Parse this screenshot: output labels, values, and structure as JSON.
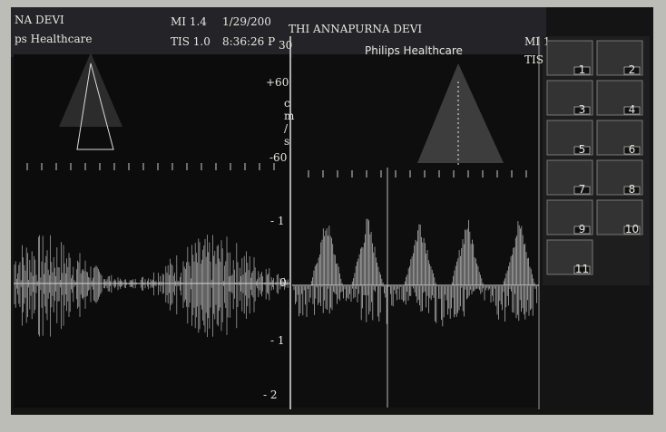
{
  "left_header": {
    "name": "NA DEVI",
    "org": "ps Healthcare",
    "mi": "MI 1.4",
    "tis": "TIS 1.0",
    "date": "1/29/200",
    "time": "8:36:26 P"
  },
  "right_header": {
    "name": "THI ANNAPURNA DEVI",
    "frame": "30",
    "org": "Philips Healthcare",
    "mi": "MI 1",
    "tis": "TIS"
  },
  "scale": {
    "top": "+60",
    "unit": [
      "c",
      "m",
      "/",
      "s"
    ],
    "bottom": "-60",
    "ticks": [
      "- 1",
      "0",
      "- 1",
      "- 2"
    ]
  },
  "thumbnails": [
    "1",
    "2",
    "3",
    "4",
    "5",
    "6",
    "7",
    "8",
    "9",
    "10",
    "11"
  ]
}
